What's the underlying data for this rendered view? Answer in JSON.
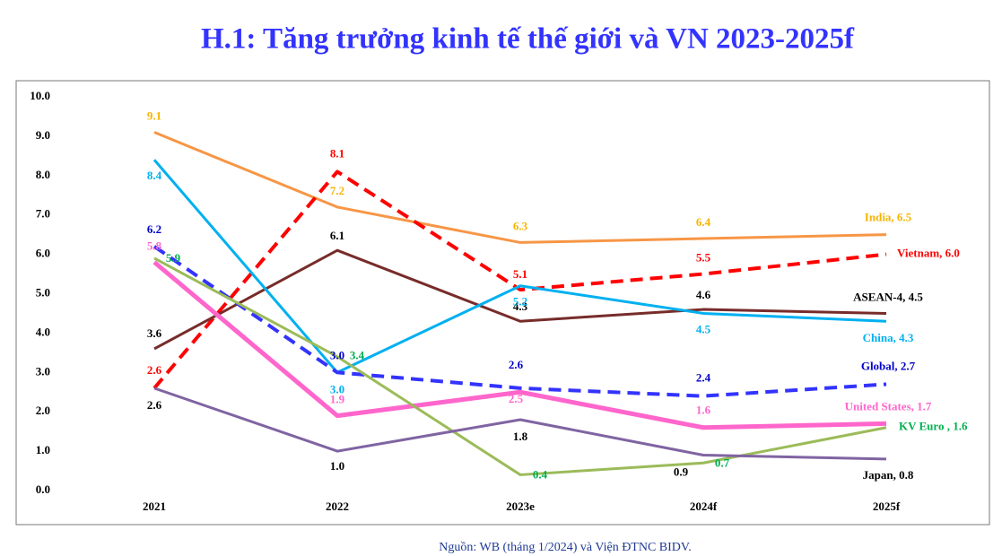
{
  "chart_data": {
    "type": "line",
    "title": "H.1: Tăng trưởng kinh tế thế giới và VN 2023-2025f",
    "source": "Nguồn: WB (tháng 1/2024) và Viện ĐTNC BIDV.",
    "categories": [
      "2021",
      "2022",
      "2023e",
      "2024f",
      "2025f"
    ],
    "ylim": [
      0,
      10
    ],
    "yticks": [
      {
        "value": 0,
        "label": "0.0"
      },
      {
        "value": 1,
        "label": "1.0"
      },
      {
        "value": 2,
        "label": "2.0"
      },
      {
        "value": 3,
        "label": "3.0"
      },
      {
        "value": 4,
        "label": "4.0"
      },
      {
        "value": 5,
        "label": "5.0"
      },
      {
        "value": 6,
        "label": "6.0"
      },
      {
        "value": 7,
        "label": "7.0"
      },
      {
        "value": 8,
        "label": "8.0"
      },
      {
        "value": 9,
        "label": "9.0"
      },
      {
        "value": 10,
        "label": "10.0"
      }
    ],
    "grid": false,
    "series": [
      {
        "name": "India",
        "color": "#f79646",
        "label_color": "#f5b400",
        "dashed": false,
        "values": [
          9.1,
          7.2,
          6.3,
          6.4,
          6.5
        ],
        "value_labels": [
          "9.1",
          "7.2",
          "6.3",
          "6.4",
          "India, 6.5"
        ]
      },
      {
        "name": "Vietnam",
        "color": "#ff0000",
        "label_color": "#ff0000",
        "dashed": true,
        "values": [
          2.6,
          8.1,
          5.1,
          5.5,
          6.0
        ],
        "value_labels": [
          "2.6",
          "8.1",
          "5.1",
          "5.5",
          "Vietnam, 6.0"
        ]
      },
      {
        "name": "ASEAN-4",
        "color": "#772c2a",
        "label_color": "#000000",
        "dashed": false,
        "values": [
          3.6,
          6.1,
          4.3,
          4.6,
          4.5
        ],
        "value_labels": [
          "3.6",
          "6.1",
          "4.3",
          "4.6",
          "ASEAN-4, 4.5"
        ]
      },
      {
        "name": "China",
        "color": "#00b0f0",
        "label_color": "#00b0f0",
        "dashed": false,
        "values": [
          8.4,
          3.0,
          5.2,
          4.5,
          4.3
        ],
        "value_labels": [
          "8.4",
          "3.0",
          "5.2",
          "4.5",
          "China, 4.3"
        ]
      },
      {
        "name": "Global",
        "color": "#3333ff",
        "label_color": "#0000cc",
        "dashed": true,
        "values": [
          6.2,
          3.0,
          2.6,
          2.4,
          2.7
        ],
        "value_labels": [
          "6.2",
          "3.0",
          "2.6",
          "2.4",
          "Global, 2.7"
        ]
      },
      {
        "name": "United States",
        "color": "#ff66cc",
        "label_color": "#ff66cc",
        "dashed": false,
        "values": [
          5.8,
          1.9,
          2.5,
          1.6,
          1.7
        ],
        "value_labels": [
          "5.8",
          "1.9",
          "2.5",
          "1.6",
          "United States, 1.7"
        ]
      },
      {
        "name": "KV Euro",
        "color": "#9bbb59",
        "label_color": "#00b050",
        "dashed": false,
        "values": [
          5.9,
          3.4,
          0.4,
          0.7,
          1.6
        ],
        "value_labels": [
          "5.9",
          "3.4",
          "0.4",
          "0.7",
          "KV Euro , 1.6"
        ]
      },
      {
        "name": "Japan",
        "color": "#8064a2",
        "label_color": "#000000",
        "dashed": false,
        "values": [
          2.6,
          1.0,
          1.8,
          0.9,
          0.8
        ],
        "value_labels": [
          "2.6",
          "1.0",
          "1.8",
          "0.9",
          "Japan, 0.8"
        ]
      }
    ]
  }
}
